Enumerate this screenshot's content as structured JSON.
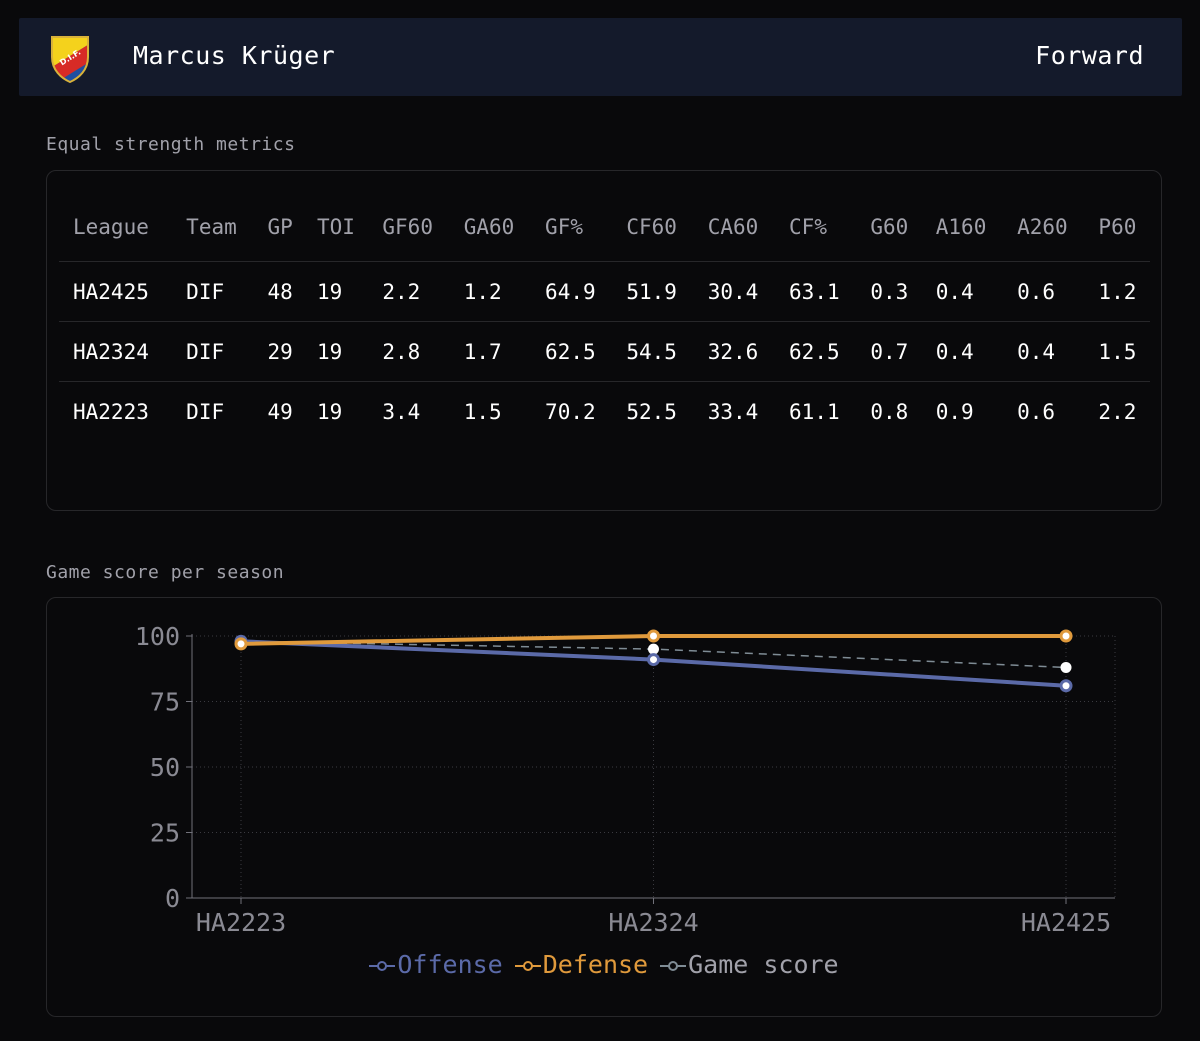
{
  "header": {
    "player_name": "Marcus Krüger",
    "position": "Forward",
    "crest_icon": "club-crest-icon"
  },
  "metrics": {
    "label": "Equal strength metrics",
    "columns": [
      "League",
      "Team",
      "GP",
      "TOI",
      "GF60",
      "GA60",
      "GF%",
      "CF60",
      "CA60",
      "CF%",
      "G60",
      "A160",
      "A260",
      "P60"
    ],
    "rows": [
      [
        "HA2425",
        "DIF",
        "48",
        "19",
        "2.2",
        "1.2",
        "64.9",
        "51.9",
        "30.4",
        "63.1",
        "0.3",
        "0.4",
        "0.6",
        "1.2"
      ],
      [
        "HA2324",
        "DIF",
        "29",
        "19",
        "2.8",
        "1.7",
        "62.5",
        "54.5",
        "32.6",
        "62.5",
        "0.7",
        "0.4",
        "0.4",
        "1.5"
      ],
      [
        "HA2223",
        "DIF",
        "49",
        "19",
        "3.4",
        "1.5",
        "70.2",
        "52.5",
        "33.4",
        "61.1",
        "0.8",
        "0.9",
        "0.6",
        "2.2"
      ]
    ]
  },
  "chart": {
    "label": "Game score per season"
  },
  "chart_data": {
    "type": "line",
    "title": "",
    "xlabel": "",
    "ylabel": "",
    "categories": [
      "HA2223",
      "HA2324",
      "HA2425"
    ],
    "ylim": [
      0,
      100
    ],
    "yticks": [
      0,
      25,
      50,
      75,
      100
    ],
    "grid": true,
    "legend_position": "bottom-center",
    "series": [
      {
        "name": "Offense",
        "values": [
          98,
          91,
          81
        ],
        "color": "#5b6aa8",
        "style": "solid"
      },
      {
        "name": "Defense",
        "values": [
          97,
          100,
          100
        ],
        "color": "#e09a3c",
        "style": "solid"
      },
      {
        "name": "Game score",
        "values": [
          98,
          95,
          88
        ],
        "color": "#7f8c95",
        "style": "dashed"
      }
    ]
  }
}
